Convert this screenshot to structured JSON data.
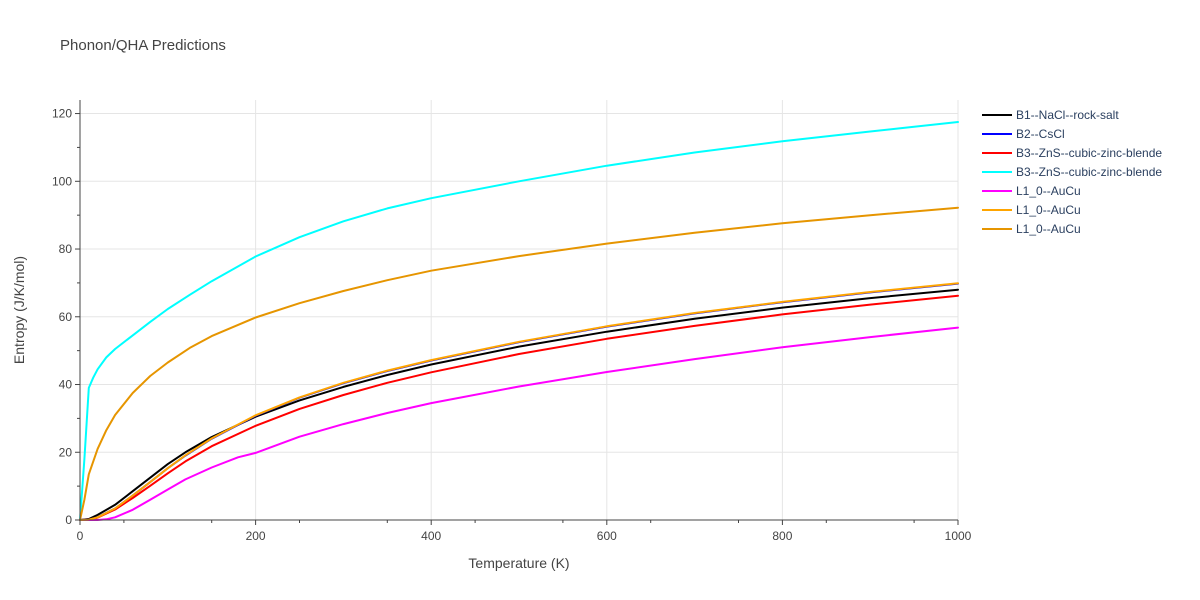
{
  "chart_data": {
    "type": "line",
    "title": "Phonon/QHA Predictions",
    "xlabel": "Temperature (K)",
    "ylabel": "Entropy (J/K/mol)",
    "xlim": [
      0,
      1000
    ],
    "ylim": [
      0,
      124
    ],
    "xticks": [
      0,
      200,
      400,
      600,
      800,
      1000
    ],
    "yticks": [
      0,
      20,
      40,
      60,
      80,
      100,
      120
    ],
    "grid": true,
    "legend_position": "right",
    "series": [
      {
        "name": "B1--NaCl--rock-salt",
        "color": "#000000",
        "points": [
          [
            0,
            0
          ],
          [
            10,
            0.3
          ],
          [
            20,
            1.5
          ],
          [
            40,
            4.5
          ],
          [
            60,
            8.5
          ],
          [
            80,
            12.5
          ],
          [
            100,
            16.5
          ],
          [
            120,
            20
          ],
          [
            150,
            24.5
          ],
          [
            200,
            30.5
          ],
          [
            250,
            35.3
          ],
          [
            300,
            39.3
          ],
          [
            350,
            42.8
          ],
          [
            400,
            45.9
          ],
          [
            500,
            51.2
          ],
          [
            600,
            55.6
          ],
          [
            700,
            59.4
          ],
          [
            800,
            62.7
          ],
          [
            900,
            65.5
          ],
          [
            1000,
            68
          ]
        ]
      },
      {
        "name": "B2--CsCl",
        "color": "#0000ff",
        "points": [
          [
            0,
            0
          ],
          [
            10,
            0.1
          ],
          [
            20,
            0.8
          ],
          [
            40,
            3.4
          ],
          [
            60,
            7.2
          ],
          [
            80,
            11.2
          ],
          [
            100,
            15.3
          ],
          [
            120,
            19
          ],
          [
            150,
            24
          ],
          [
            200,
            30.8
          ],
          [
            250,
            36.1
          ],
          [
            300,
            40.4
          ],
          [
            350,
            44
          ],
          [
            400,
            47.1
          ],
          [
            500,
            52.5
          ],
          [
            600,
            57.1
          ],
          [
            700,
            61
          ],
          [
            800,
            64.3
          ],
          [
            900,
            67.2
          ],
          [
            1000,
            69.8
          ]
        ]
      },
      {
        "name": "B3--ZnS--cubic-zinc-blende",
        "color": "#ff0000",
        "points": [
          [
            0,
            0
          ],
          [
            10,
            0.1
          ],
          [
            20,
            0.7
          ],
          [
            40,
            3.1
          ],
          [
            60,
            6.5
          ],
          [
            80,
            10.1
          ],
          [
            100,
            13.8
          ],
          [
            120,
            17.3
          ],
          [
            150,
            21.8
          ],
          [
            200,
            27.8
          ],
          [
            250,
            32.8
          ],
          [
            300,
            36.9
          ],
          [
            350,
            40.5
          ],
          [
            400,
            43.6
          ],
          [
            500,
            49
          ],
          [
            600,
            53.5
          ],
          [
            700,
            57.3
          ],
          [
            800,
            60.7
          ],
          [
            900,
            63.6
          ],
          [
            1000,
            66.2
          ]
        ]
      },
      {
        "name": "B3--ZnS--cubic-zinc-blende",
        "color": "#00ffff",
        "points": [
          [
            0,
            0
          ],
          [
            5,
            18
          ],
          [
            10,
            39
          ],
          [
            15,
            42
          ],
          [
            20,
            44.5
          ],
          [
            30,
            48
          ],
          [
            40,
            50.5
          ],
          [
            60,
            54.5
          ],
          [
            80,
            58.5
          ],
          [
            100,
            62.3
          ],
          [
            125,
            66.5
          ],
          [
            150,
            70.5
          ],
          [
            200,
            77.8
          ],
          [
            250,
            83.5
          ],
          [
            300,
            88.2
          ],
          [
            350,
            92
          ],
          [
            400,
            95
          ],
          [
            500,
            100
          ],
          [
            600,
            104.6
          ],
          [
            700,
            108.5
          ],
          [
            800,
            111.8
          ],
          [
            900,
            114.7
          ],
          [
            1000,
            117.5
          ]
        ]
      },
      {
        "name": "L1_0--AuCu",
        "color": "#ff00ff",
        "points": [
          [
            0,
            0
          ],
          [
            20,
            0
          ],
          [
            30,
            0.2
          ],
          [
            40,
            0.8
          ],
          [
            60,
            3
          ],
          [
            80,
            6
          ],
          [
            100,
            9
          ],
          [
            120,
            12
          ],
          [
            150,
            15.5
          ],
          [
            180,
            18.5
          ],
          [
            200,
            19.8
          ],
          [
            250,
            24.6
          ],
          [
            300,
            28.3
          ],
          [
            350,
            31.6
          ],
          [
            400,
            34.5
          ],
          [
            500,
            39.4
          ],
          [
            600,
            43.7
          ],
          [
            700,
            47.5
          ],
          [
            800,
            51
          ],
          [
            900,
            54
          ],
          [
            1000,
            56.8
          ]
        ]
      },
      {
        "name": "L1_0--AuCu",
        "color": "#ffa500",
        "points": [
          [
            0,
            0
          ],
          [
            10,
            0.1
          ],
          [
            20,
            0.8
          ],
          [
            40,
            3.4
          ],
          [
            60,
            7.2
          ],
          [
            80,
            11.2
          ],
          [
            100,
            15.3
          ],
          [
            120,
            19.1
          ],
          [
            150,
            24.1
          ],
          [
            200,
            30.9
          ],
          [
            250,
            36.2
          ],
          [
            300,
            40.5
          ],
          [
            350,
            44.1
          ],
          [
            400,
            47.2
          ],
          [
            500,
            52.6
          ],
          [
            600,
            57.2
          ],
          [
            700,
            61.1
          ],
          [
            800,
            64.4
          ],
          [
            900,
            67.3
          ],
          [
            1000,
            69.9
          ]
        ]
      },
      {
        "name": "L1_0--AuCu",
        "color": "#e69500",
        "points": [
          [
            0,
            0
          ],
          [
            5,
            6
          ],
          [
            10,
            13.5
          ],
          [
            20,
            21
          ],
          [
            30,
            26.5
          ],
          [
            40,
            31
          ],
          [
            60,
            37.5
          ],
          [
            80,
            42.5
          ],
          [
            100,
            46.5
          ],
          [
            125,
            50.8
          ],
          [
            150,
            54.3
          ],
          [
            200,
            59.8
          ],
          [
            250,
            64
          ],
          [
            300,
            67.6
          ],
          [
            350,
            70.8
          ],
          [
            400,
            73.6
          ],
          [
            500,
            77.9
          ],
          [
            600,
            81.6
          ],
          [
            700,
            84.8
          ],
          [
            800,
            87.6
          ],
          [
            900,
            90
          ],
          [
            1000,
            92.2
          ]
        ]
      }
    ]
  }
}
